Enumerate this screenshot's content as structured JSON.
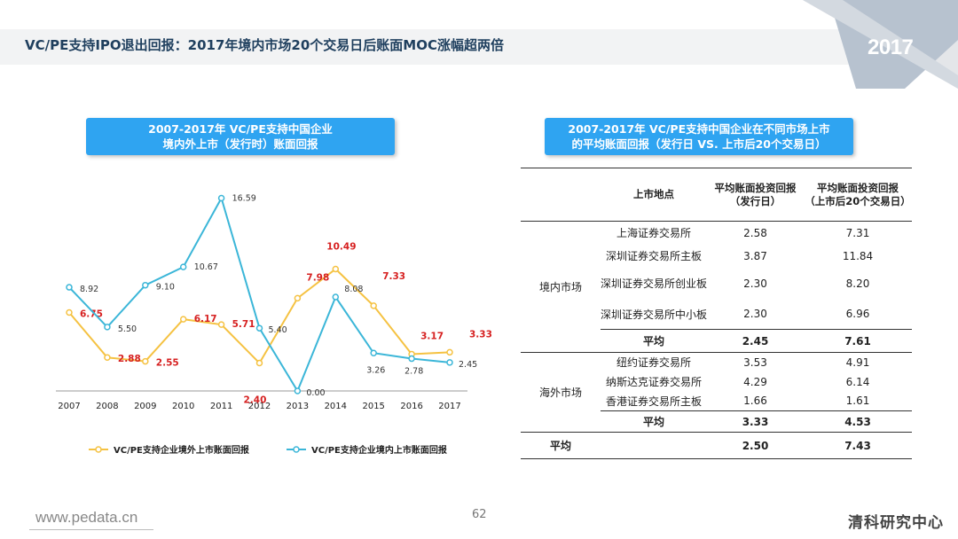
{
  "page": {
    "title": "VC/PE支持IPO退出回报：2017年境内市场20个交易日后账面MOC涨幅超两倍",
    "year_badge": "2017",
    "footer_url": "www.pedata.cn",
    "page_number": "62",
    "brand": "清科研究中心"
  },
  "left_panel": {
    "title_line1": "2007-2017年 VC/PE支持中国企业",
    "title_line2": "境内外上市（发行时）账面回报"
  },
  "right_panel": {
    "title_line1": "2007-2017年 VC/PE支持中国企业在不同市场上市",
    "title_line2": "的平均账面回报（发行日 VS. 上市后20个交易日）"
  },
  "colors": {
    "overseas": "#f5c242",
    "domestic": "#3bb6d8",
    "overseas_label": "#d62020",
    "domestic_label": "#333333",
    "title_bg": "#2fa4f1"
  },
  "chart_data": {
    "type": "line",
    "categories": [
      "2007",
      "2008",
      "2009",
      "2010",
      "2011",
      "2012",
      "2013",
      "2014",
      "2015",
      "2016",
      "2017"
    ],
    "series": [
      {
        "name": "VC/PE支持企业境外上市账面回报",
        "values": [
          6.75,
          2.88,
          2.55,
          6.17,
          5.71,
          2.4,
          7.98,
          10.49,
          7.33,
          3.17,
          3.33
        ],
        "labels": [
          "6.75",
          "2.88",
          "2.55",
          "6.17",
          "5.71",
          "2.40",
          "7.98",
          "10.49",
          "7.33",
          "3.17",
          "3.33"
        ]
      },
      {
        "name": "VC/PE支持企业境内上市账面回报",
        "values": [
          8.92,
          5.5,
          9.1,
          10.67,
          16.59,
          5.4,
          0.0,
          8.08,
          3.26,
          2.78,
          2.45
        ],
        "labels": [
          "8.92",
          "5.50",
          "9.10",
          "10.67",
          "16.59",
          "5.40",
          "0.00",
          "8.08",
          "3.26",
          "2.78",
          "2.45"
        ]
      }
    ],
    "ylim": [
      0,
      18
    ],
    "grid": false,
    "legend": "bottom"
  },
  "table": {
    "headers": {
      "place": "上市地点",
      "v1_line1": "平均账面投资回报",
      "v1_line2": "（发行日）",
      "v2_line1": "平均账面投资回报",
      "v2_line2": "（上市后20个交易日）"
    },
    "domestic": {
      "group": "境内市场",
      "rows": [
        {
          "place": "上海证券交易所",
          "v1": "2.58",
          "v2": "7.31"
        },
        {
          "place": "深圳证券交易所主板",
          "v1": "3.87",
          "v2": "11.84"
        },
        {
          "place": "深圳证券交易所创业板",
          "v1": "2.30",
          "v2": "8.20"
        },
        {
          "place": "深圳证券交易所中小板",
          "v1": "2.30",
          "v2": "6.96"
        }
      ],
      "avg": {
        "label": "平均",
        "v1": "2.45",
        "v2": "7.61"
      }
    },
    "overseas": {
      "group": "海外市场",
      "rows": [
        {
          "place": "纽约证券交易所",
          "v1": "3.53",
          "v2": "4.91"
        },
        {
          "place": "纳斯达克证券交易所",
          "v1": "4.29",
          "v2": "6.14"
        },
        {
          "place": "香港证券交易所主板",
          "v1": "1.66",
          "v2": "1.61"
        }
      ],
      "avg": {
        "label": "平均",
        "v1": "3.33",
        "v2": "4.53"
      }
    },
    "total": {
      "label": "平均",
      "v1": "2.50",
      "v2": "7.43"
    }
  }
}
